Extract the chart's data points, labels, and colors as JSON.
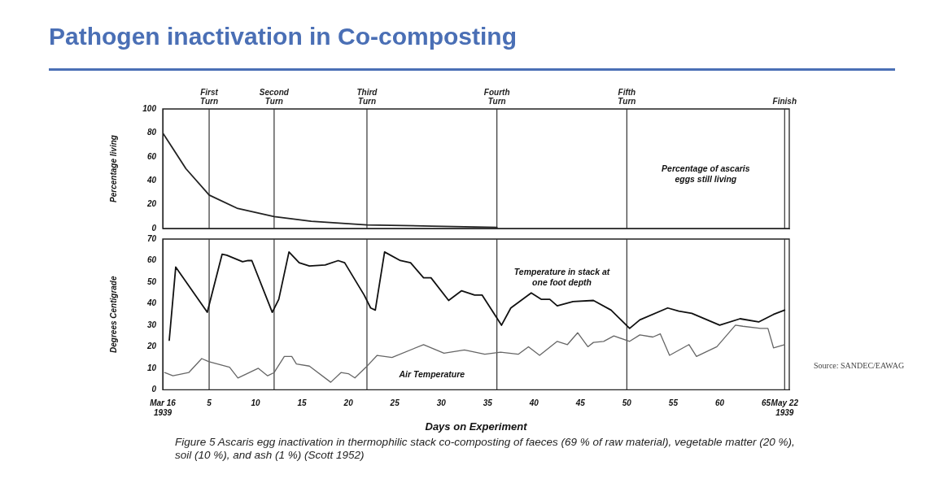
{
  "chart_data": [
    {
      "type": "line",
      "title": "Pathogen inactivation in Co-composting",
      "ylabel": "Percentage living",
      "series": [
        {
          "name": "Percentage of ascaris eggs still living",
          "color": "#222222",
          "x": [
            0,
            1,
            2.5,
            5,
            8,
            12,
            16,
            22,
            29,
            36
          ],
          "values": [
            80,
            68,
            50,
            28,
            17,
            10,
            6,
            3,
            2,
            1
          ]
        }
      ],
      "xlim": [
        0,
        67.5
      ],
      "ylim": [
        0,
        100
      ],
      "yticks": [
        0,
        20,
        40,
        60,
        80,
        100
      ],
      "tick_labels": "y",
      "grid": false,
      "legend": false,
      "marker": "none",
      "line_style": "solid",
      "ref_lines": [
        {
          "axis": "x",
          "value": 5,
          "label": "First Turn"
        },
        {
          "axis": "x",
          "value": 12,
          "label": "Second Turn"
        },
        {
          "axis": "x",
          "value": 22,
          "label": "Third Turn"
        },
        {
          "axis": "x",
          "value": 36,
          "label": "Fourth Turn"
        },
        {
          "axis": "x",
          "value": 50,
          "label": "Fifth Turn"
        },
        {
          "axis": "x",
          "value": 67,
          "label": "Finish"
        }
      ]
    },
    {
      "type": "line",
      "xlabel": "Days on Experiment",
      "ylabel": "Degrees Centigrade",
      "series": [
        {
          "name": "Temperature in stack at one foot depth",
          "color": "#111111",
          "x": [
            0.7,
            1.4,
            4.8,
            6.4,
            6.9,
            8.6,
            9.2,
            9.6,
            11.8,
            12.5,
            13.6,
            14.7,
            15.8,
            17.5,
            18.9,
            19.6,
            21.7,
            22.4,
            22.9,
            23.9,
            25.6,
            26.7,
            28.1,
            28.9,
            30.8,
            32.2,
            33.6,
            34.4,
            36.5,
            37.5,
            39.7,
            40.8,
            41.7,
            42.5,
            44.2,
            46.4,
            48.3,
            50.3,
            51.4,
            54.4,
            55.6,
            57,
            60,
            62.2,
            64.2,
            65.8,
            67
          ],
          "values": [
            23,
            57,
            36,
            63,
            62.5,
            59.5,
            60,
            60,
            36,
            42,
            64,
            59,
            57.5,
            58,
            60,
            59,
            44,
            38,
            37,
            64,
            60,
            59,
            52,
            52,
            41.5,
            46,
            44,
            44,
            30,
            38,
            45,
            42,
            42,
            39,
            41,
            41.5,
            37,
            28.5,
            32.5,
            38,
            36.5,
            35.5,
            30,
            33,
            31.5,
            35,
            37
          ]
        },
        {
          "name": "Air Temperature",
          "color": "#666666",
          "x": [
            0.2,
            1.1,
            2.8,
            4.2,
            5,
            7.2,
            8.1,
            10.3,
            11.3,
            12,
            13.1,
            13.9,
            14.4,
            15.8,
            18.1,
            19.2,
            20,
            20.7,
            21.9,
            23.1,
            24.7,
            28.1,
            30.3,
            32.5,
            34.7,
            36.4,
            38.3,
            39.4,
            40.6,
            42.5,
            43.6,
            44.7,
            45.8,
            46.4,
            47.5,
            48.6,
            50.3,
            51.4,
            52.8,
            53.6,
            54.6,
            56.7,
            57.5,
            59.7,
            61.7,
            62.5,
            64.4,
            65.2,
            65.8,
            67
          ],
          "values": [
            8,
            6.5,
            8,
            14.5,
            13,
            10.5,
            5.5,
            10,
            6.5,
            8,
            15.5,
            15.5,
            12,
            11,
            3.5,
            8,
            7.5,
            5.5,
            10.5,
            16,
            15,
            21,
            17,
            18.5,
            16.5,
            17.5,
            16.5,
            20,
            16,
            22.5,
            21,
            26.5,
            20,
            22,
            22.5,
            25,
            22.5,
            25.5,
            24.5,
            26,
            16,
            21,
            15.5,
            20,
            30,
            29.5,
            28.5,
            28.5,
            19.5,
            21
          ]
        }
      ],
      "xlim": [
        0,
        67.5
      ],
      "xticks": [
        {
          "value": 0,
          "label": "Mar 16 1939"
        },
        5,
        10,
        15,
        20,
        25,
        30,
        35,
        40,
        45,
        50,
        55,
        60,
        65,
        {
          "value": 67,
          "label": "May 22 1939"
        }
      ],
      "ylim": [
        0,
        70
      ],
      "yticks": [
        0,
        10,
        20,
        30,
        40,
        50,
        60,
        70
      ],
      "grid": false,
      "legend": false,
      "marker": "none",
      "line_style": "solid",
      "ref_lines": [
        {
          "axis": "x",
          "value": 5
        },
        {
          "axis": "x",
          "value": 12
        },
        {
          "axis": "x",
          "value": 22
        },
        {
          "axis": "x",
          "value": 36
        },
        {
          "axis": "x",
          "value": 50
        },
        {
          "axis": "x",
          "value": 67
        }
      ],
      "annotations": [
        "Source: SANDEC/EAWAG",
        "Figure 5   Ascaris egg inactivation in thermophilic stack co-composting of faeces (69 % of raw material), vegetable matter (20 %), soil (10 %), and ash (1 %) (Scott 1952)"
      ]
    }
  ]
}
